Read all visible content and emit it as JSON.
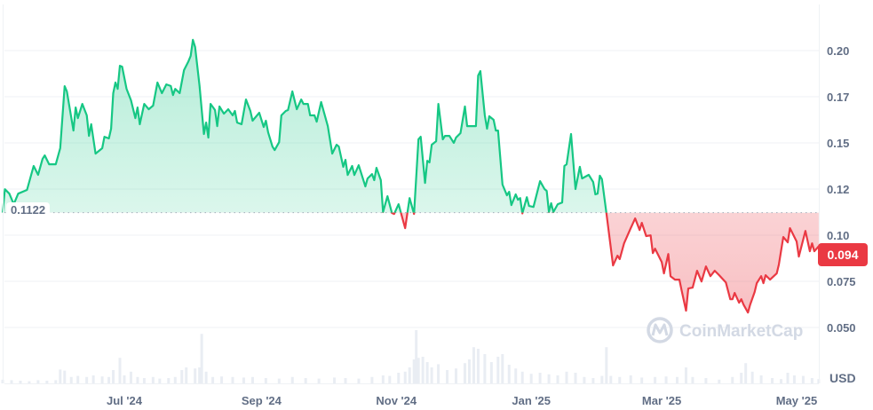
{
  "chart_data": {
    "type": "area",
    "currency_label": "USD",
    "baseline": {
      "value": 0.1122,
      "label": "0.1122"
    },
    "current_price": {
      "value": 0.094,
      "label": "0.094"
    },
    "ylim": [
      0.035,
      0.215
    ],
    "y_ticks": [
      {
        "value": 0.2,
        "label": "0.20"
      },
      {
        "value": 0.175,
        "label": "0.17"
      },
      {
        "value": 0.15,
        "label": "0.15"
      },
      {
        "value": 0.125,
        "label": "0.12"
      },
      {
        "value": 0.1,
        "label": "0.10"
      },
      {
        "value": 0.075,
        "label": "0.075"
      },
      {
        "value": 0.05,
        "label": "0.050"
      }
    ],
    "x_ticks": [
      {
        "date": "2024-07-01",
        "label": "Jul '24"
      },
      {
        "date": "2024-09-01",
        "label": "Sep '24"
      },
      {
        "date": "2024-11-01",
        "label": "Nov '24"
      },
      {
        "date": "2025-01-01",
        "label": "Jan '25"
      },
      {
        "date": "2025-03-01",
        "label": "Mar '25"
      },
      {
        "date": "2025-05-01",
        "label": "May '25"
      }
    ],
    "grid": true,
    "colors": {
      "above": "#16c784",
      "below": "#ea3943",
      "volume": "#e9edf3",
      "grid": "#eff2f5",
      "axis_text": "#616e85"
    },
    "price": [
      [
        "2024-05-07",
        0.1122
      ],
      [
        "2024-05-08",
        0.1249
      ],
      [
        "2024-05-10",
        0.1225
      ],
      [
        "2024-05-12",
        0.1168
      ],
      [
        "2024-05-14",
        0.1225
      ],
      [
        "2024-05-18",
        0.1245
      ],
      [
        "2024-05-21",
        0.1375
      ],
      [
        "2024-05-23",
        0.1327
      ],
      [
        "2024-05-25",
        0.1413
      ],
      [
        "2024-05-26",
        0.1432
      ],
      [
        "2024-05-28",
        0.1384
      ],
      [
        "2024-05-31",
        0.1384
      ],
      [
        "2024-06-02",
        0.1471
      ],
      [
        "2024-06-04",
        0.1807
      ],
      [
        "2024-06-05",
        0.1779
      ],
      [
        "2024-06-08",
        0.1567
      ],
      [
        "2024-06-09",
        0.1692
      ],
      [
        "2024-06-10",
        0.1634
      ],
      [
        "2024-06-12",
        0.1711
      ],
      [
        "2024-06-14",
        0.1649
      ],
      [
        "2024-06-15",
        0.1538
      ],
      [
        "2024-06-16",
        0.1601
      ],
      [
        "2024-06-18",
        0.1442
      ],
      [
        "2024-06-21",
        0.1471
      ],
      [
        "2024-06-22",
        0.1533
      ],
      [
        "2024-06-24",
        0.1524
      ],
      [
        "2024-06-25",
        0.1577
      ],
      [
        "2024-06-26",
        0.1769
      ],
      [
        "2024-06-27",
        0.1827
      ],
      [
        "2024-06-28",
        0.1793
      ],
      [
        "2024-06-29",
        0.1918
      ],
      [
        "2024-06-30",
        0.1913
      ],
      [
        "2024-07-02",
        0.1793
      ],
      [
        "2024-07-04",
        0.1731
      ],
      [
        "2024-07-06",
        0.1634
      ],
      [
        "2024-07-07",
        0.1692
      ],
      [
        "2024-07-08",
        0.1601
      ],
      [
        "2024-07-10",
        0.1711
      ],
      [
        "2024-07-12",
        0.1682
      ],
      [
        "2024-07-14",
        0.1702
      ],
      [
        "2024-07-16",
        0.1827
      ],
      [
        "2024-07-18",
        0.1769
      ],
      [
        "2024-07-20",
        0.1817
      ],
      [
        "2024-07-22",
        0.1808
      ],
      [
        "2024-07-23",
        0.1759
      ],
      [
        "2024-07-24",
        0.1793
      ],
      [
        "2024-07-26",
        0.1769
      ],
      [
        "2024-07-28",
        0.1894
      ],
      [
        "2024-07-30",
        0.1942
      ],
      [
        "2024-07-31",
        0.1971
      ],
      [
        "2024-08-01",
        0.2058
      ],
      [
        "2024-08-02",
        0.2019
      ],
      [
        "2024-08-04",
        0.1808
      ],
      [
        "2024-08-06",
        0.1548
      ],
      [
        "2024-08-07",
        0.161
      ],
      [
        "2024-08-08",
        0.1529
      ],
      [
        "2024-08-09",
        0.1711
      ],
      [
        "2024-08-11",
        0.1678
      ],
      [
        "2024-08-12",
        0.1591
      ],
      [
        "2024-08-13",
        0.1697
      ],
      [
        "2024-08-15",
        0.1658
      ],
      [
        "2024-08-17",
        0.1682
      ],
      [
        "2024-08-19",
        0.1649
      ],
      [
        "2024-08-20",
        0.1673
      ],
      [
        "2024-08-21",
        0.161
      ],
      [
        "2024-08-23",
        0.1601
      ],
      [
        "2024-08-25",
        0.1735
      ],
      [
        "2024-08-27",
        0.1673
      ],
      [
        "2024-08-28",
        0.162
      ],
      [
        "2024-08-31",
        0.1663
      ],
      [
        "2024-09-02",
        0.1586
      ],
      [
        "2024-09-03",
        0.162
      ],
      [
        "2024-09-04",
        0.1557
      ],
      [
        "2024-09-06",
        0.148
      ],
      [
        "2024-09-07",
        0.1461
      ],
      [
        "2024-09-09",
        0.1504
      ],
      [
        "2024-09-10",
        0.1649
      ],
      [
        "2024-09-12",
        0.1673
      ],
      [
        "2024-09-13",
        0.1678
      ],
      [
        "2024-09-15",
        0.1779
      ],
      [
        "2024-09-17",
        0.1682
      ],
      [
        "2024-09-19",
        0.1735
      ],
      [
        "2024-09-20",
        0.1711
      ],
      [
        "2024-09-22",
        0.1711
      ],
      [
        "2024-09-23",
        0.1649
      ],
      [
        "2024-09-25",
        0.1649
      ],
      [
        "2024-09-26",
        0.1615
      ],
      [
        "2024-09-28",
        0.1721
      ],
      [
        "2024-10-01",
        0.1591
      ],
      [
        "2024-10-03",
        0.1442
      ],
      [
        "2024-10-05",
        0.149
      ],
      [
        "2024-10-06",
        0.148
      ],
      [
        "2024-10-08",
        0.137
      ],
      [
        "2024-10-09",
        0.1408
      ],
      [
        "2024-10-10",
        0.1326
      ],
      [
        "2024-10-12",
        0.1375
      ],
      [
        "2024-10-13",
        0.1326
      ],
      [
        "2024-10-15",
        0.1379
      ],
      [
        "2024-10-18",
        0.1264
      ],
      [
        "2024-10-19",
        0.1307
      ],
      [
        "2024-10-21",
        0.1331
      ],
      [
        "2024-10-22",
        0.1298
      ],
      [
        "2024-10-23",
        0.1365
      ],
      [
        "2024-10-25",
        0.1298
      ],
      [
        "2024-10-26",
        0.1125
      ],
      [
        "2024-10-28",
        0.1211
      ],
      [
        "2024-10-30",
        0.112
      ],
      [
        "2024-10-31",
        0.1115
      ],
      [
        "2024-11-02",
        0.1168
      ],
      [
        "2024-11-05",
        0.1038
      ],
      [
        "2024-11-07",
        0.1201
      ],
      [
        "2024-11-09",
        0.1115
      ],
      [
        "2024-11-11",
        0.1519
      ],
      [
        "2024-11-12",
        0.1533
      ],
      [
        "2024-11-14",
        0.1283
      ],
      [
        "2024-11-15",
        0.1403
      ],
      [
        "2024-11-16",
        0.1394
      ],
      [
        "2024-11-17",
        0.149
      ],
      [
        "2024-11-19",
        0.1509
      ],
      [
        "2024-11-20",
        0.1711
      ],
      [
        "2024-11-22",
        0.1519
      ],
      [
        "2024-11-23",
        0.1538
      ],
      [
        "2024-11-25",
        0.1538
      ],
      [
        "2024-11-27",
        0.15
      ],
      [
        "2024-11-28",
        0.1529
      ],
      [
        "2024-11-30",
        0.1553
      ],
      [
        "2024-12-02",
        0.1697
      ],
      [
        "2024-12-03",
        0.1591
      ],
      [
        "2024-12-07",
        0.1591
      ],
      [
        "2024-12-08",
        0.1865
      ],
      [
        "2024-12-09",
        0.1889
      ],
      [
        "2024-12-11",
        0.1649
      ],
      [
        "2024-12-12",
        0.1577
      ],
      [
        "2024-12-13",
        0.1644
      ],
      [
        "2024-12-15",
        0.1625
      ],
      [
        "2024-12-16",
        0.1567
      ],
      [
        "2024-12-17",
        0.1567
      ],
      [
        "2024-12-19",
        0.1274
      ],
      [
        "2024-12-21",
        0.1216
      ],
      [
        "2024-12-22",
        0.1235
      ],
      [
        "2024-12-23",
        0.1163
      ],
      [
        "2024-12-25",
        0.1221
      ],
      [
        "2024-12-26",
        0.1192
      ],
      [
        "2024-12-27",
        0.1201
      ],
      [
        "2024-12-28",
        0.1118
      ],
      [
        "2024-12-30",
        0.1206
      ],
      [
        "2024-12-31",
        0.1158
      ],
      [
        "2025-01-02",
        0.1153
      ],
      [
        "2025-01-05",
        0.1293
      ],
      [
        "2025-01-07",
        0.125
      ],
      [
        "2025-01-08",
        0.124
      ],
      [
        "2025-01-09",
        0.1125
      ],
      [
        "2025-01-10",
        0.1173
      ],
      [
        "2025-01-11",
        0.1125
      ],
      [
        "2025-01-13",
        0.1168
      ],
      [
        "2025-01-15",
        0.1177
      ],
      [
        "2025-01-16",
        0.1375
      ],
      [
        "2025-01-17",
        0.1384
      ],
      [
        "2025-01-19",
        0.1548
      ],
      [
        "2025-01-21",
        0.125
      ],
      [
        "2025-01-23",
        0.137
      ],
      [
        "2025-01-24",
        0.1307
      ],
      [
        "2025-01-27",
        0.1327
      ],
      [
        "2025-01-29",
        0.1288
      ],
      [
        "2025-01-30",
        0.1221
      ],
      [
        "2025-01-31",
        0.1225
      ],
      [
        "2025-02-01",
        0.1322
      ],
      [
        "2025-02-02",
        0.1303
      ],
      [
        "2025-02-04",
        0.112
      ],
      [
        "2025-02-07",
        0.0836
      ],
      [
        "2025-02-09",
        0.0889
      ],
      [
        "2025-02-10",
        0.087
      ],
      [
        "2025-02-12",
        0.0956
      ],
      [
        "2025-02-15",
        0.1038
      ],
      [
        "2025-02-17",
        0.1091
      ],
      [
        "2025-02-19",
        0.1028
      ],
      [
        "2025-02-20",
        0.1067
      ],
      [
        "2025-02-22",
        0.0995
      ],
      [
        "2025-02-24",
        0.0999
      ],
      [
        "2025-02-25",
        0.0903
      ],
      [
        "2025-02-26",
        0.0927
      ],
      [
        "2025-03-01",
        0.0855
      ],
      [
        "2025-03-02",
        0.0793
      ],
      [
        "2025-03-04",
        0.0898
      ],
      [
        "2025-03-05",
        0.0778
      ],
      [
        "2025-03-07",
        0.0759
      ],
      [
        "2025-03-09",
        0.0759
      ],
      [
        "2025-03-10",
        0.0701
      ],
      [
        "2025-03-12",
        0.0591
      ],
      [
        "2025-03-13",
        0.0711
      ],
      [
        "2025-03-15",
        0.0716
      ],
      [
        "2025-03-17",
        0.0807
      ],
      [
        "2025-03-19",
        0.0749
      ],
      [
        "2025-03-21",
        0.0831
      ],
      [
        "2025-03-23",
        0.0778
      ],
      [
        "2025-03-25",
        0.0807
      ],
      [
        "2025-03-27",
        0.0783
      ],
      [
        "2025-03-30",
        0.0744
      ],
      [
        "2025-04-01",
        0.0653
      ],
      [
        "2025-04-02",
        0.0653
      ],
      [
        "2025-04-03",
        0.0687
      ],
      [
        "2025-04-05",
        0.0634
      ],
      [
        "2025-04-06",
        0.0653
      ],
      [
        "2025-04-07",
        0.0624
      ],
      [
        "2025-04-09",
        0.0581
      ],
      [
        "2025-04-10",
        0.0624
      ],
      [
        "2025-04-12",
        0.0692
      ],
      [
        "2025-04-13",
        0.074
      ],
      [
        "2025-04-15",
        0.0778
      ],
      [
        "2025-04-16",
        0.074
      ],
      [
        "2025-04-17",
        0.0783
      ],
      [
        "2025-04-19",
        0.0759
      ],
      [
        "2025-04-22",
        0.0793
      ],
      [
        "2025-04-23",
        0.0841
      ],
      [
        "2025-04-25",
        0.099
      ],
      [
        "2025-04-27",
        0.0961
      ],
      [
        "2025-04-28",
        0.1038
      ],
      [
        "2025-05-01",
        0.0966
      ],
      [
        "2025-05-02",
        0.0884
      ],
      [
        "2025-05-05",
        0.1023
      ],
      [
        "2025-05-07",
        0.0913
      ],
      [
        "2025-05-08",
        0.0956
      ],
      [
        "2025-05-09",
        0.0913
      ],
      [
        "2025-05-11",
        0.094
      ]
    ],
    "volume_relative": [
      [
        "2024-05-07",
        7
      ],
      [
        "2024-05-11",
        6
      ],
      [
        "2024-05-15",
        5
      ],
      [
        "2024-05-19",
        4
      ],
      [
        "2024-05-23",
        6
      ],
      [
        "2024-05-27",
        5
      ],
      [
        "2024-05-31",
        6
      ],
      [
        "2024-06-02",
        26
      ],
      [
        "2024-06-04",
        24
      ],
      [
        "2024-06-07",
        12
      ],
      [
        "2024-06-10",
        14
      ],
      [
        "2024-06-14",
        12
      ],
      [
        "2024-06-17",
        15
      ],
      [
        "2024-06-21",
        13
      ],
      [
        "2024-06-24",
        12
      ],
      [
        "2024-06-26",
        25
      ],
      [
        "2024-06-29",
        48
      ],
      [
        "2024-07-01",
        15
      ],
      [
        "2024-07-04",
        22
      ],
      [
        "2024-07-07",
        12
      ],
      [
        "2024-07-10",
        10
      ],
      [
        "2024-07-14",
        12
      ],
      [
        "2024-07-17",
        9
      ],
      [
        "2024-07-21",
        10
      ],
      [
        "2024-07-24",
        12
      ],
      [
        "2024-07-27",
        25
      ],
      [
        "2024-07-29",
        30
      ],
      [
        "2024-08-02",
        28
      ],
      [
        "2024-08-04",
        30
      ],
      [
        "2024-08-05",
        93
      ],
      [
        "2024-08-07",
        22
      ],
      [
        "2024-08-10",
        12
      ],
      [
        "2024-08-14",
        13
      ],
      [
        "2024-08-19",
        12
      ],
      [
        "2024-08-24",
        11
      ],
      [
        "2024-08-28",
        12
      ],
      [
        "2024-09-03",
        10
      ],
      [
        "2024-09-09",
        9
      ],
      [
        "2024-09-15",
        12
      ],
      [
        "2024-09-21",
        10
      ],
      [
        "2024-09-27",
        9
      ],
      [
        "2024-10-04",
        11
      ],
      [
        "2024-10-09",
        10
      ],
      [
        "2024-10-15",
        9
      ],
      [
        "2024-10-21",
        12
      ],
      [
        "2024-10-26",
        15
      ],
      [
        "2024-10-29",
        14
      ],
      [
        "2024-11-02",
        20
      ],
      [
        "2024-11-05",
        22
      ],
      [
        "2024-11-07",
        30
      ],
      [
        "2024-11-09",
        45
      ],
      [
        "2024-11-10",
        100
      ],
      [
        "2024-11-11",
        48
      ],
      [
        "2024-11-13",
        50
      ],
      [
        "2024-11-15",
        40
      ],
      [
        "2024-11-17",
        30
      ],
      [
        "2024-11-20",
        36
      ],
      [
        "2024-11-24",
        25
      ],
      [
        "2024-11-28",
        28
      ],
      [
        "2024-12-02",
        38
      ],
      [
        "2024-12-04",
        45
      ],
      [
        "2024-12-06",
        68
      ],
      [
        "2024-12-08",
        65
      ],
      [
        "2024-12-11",
        55
      ],
      [
        "2024-12-14",
        40
      ],
      [
        "2024-12-17",
        50
      ],
      [
        "2024-12-19",
        55
      ],
      [
        "2024-12-22",
        35
      ],
      [
        "2024-12-25",
        28
      ],
      [
        "2024-12-28",
        22
      ],
      [
        "2025-01-01",
        18
      ],
      [
        "2025-01-05",
        20
      ],
      [
        "2025-01-09",
        17
      ],
      [
        "2025-01-13",
        15
      ],
      [
        "2025-01-17",
        22
      ],
      [
        "2025-01-21",
        20
      ],
      [
        "2025-01-25",
        12
      ],
      [
        "2025-01-29",
        10
      ],
      [
        "2025-02-02",
        14
      ],
      [
        "2025-02-04",
        68
      ],
      [
        "2025-02-06",
        14
      ],
      [
        "2025-02-10",
        12
      ],
      [
        "2025-02-15",
        15
      ],
      [
        "2025-02-20",
        11
      ],
      [
        "2025-02-26",
        12
      ],
      [
        "2025-03-03",
        13
      ],
      [
        "2025-03-08",
        12
      ],
      [
        "2025-03-12",
        30
      ],
      [
        "2025-03-15",
        12
      ],
      [
        "2025-03-21",
        10
      ],
      [
        "2025-03-27",
        7
      ],
      [
        "2025-04-02",
        12
      ],
      [
        "2025-04-06",
        20
      ],
      [
        "2025-04-08",
        38
      ],
      [
        "2025-04-11",
        22
      ],
      [
        "2025-04-15",
        15
      ],
      [
        "2025-04-20",
        10
      ],
      [
        "2025-04-24",
        8
      ],
      [
        "2025-04-27",
        20
      ],
      [
        "2025-04-30",
        15
      ],
      [
        "2025-05-04",
        14
      ],
      [
        "2025-05-08",
        10
      ],
      [
        "2025-05-11",
        8
      ]
    ]
  },
  "watermark": {
    "text": "CoinMarketCap",
    "icon": "coinmarketcap-logo-icon"
  }
}
